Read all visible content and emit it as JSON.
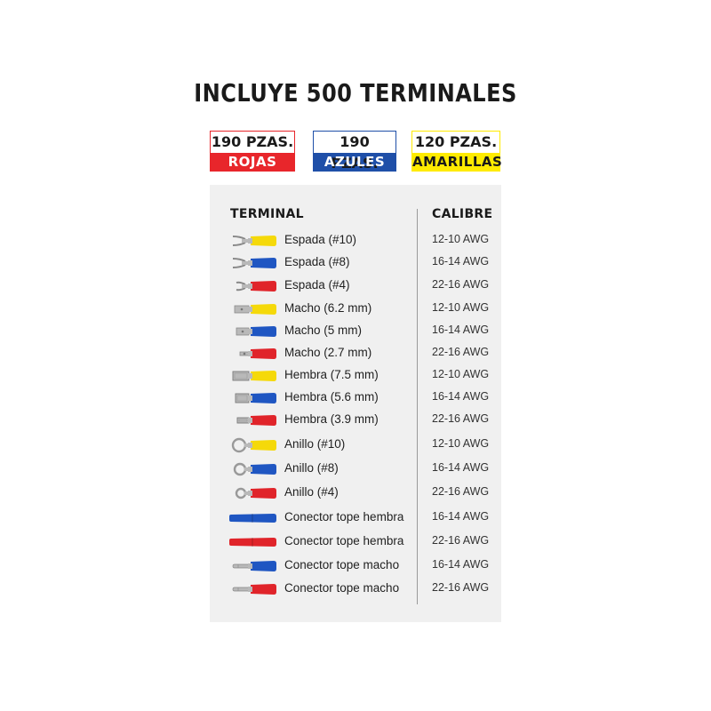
{
  "title": "INCLUYE 500 TERMINALES",
  "badges": [
    {
      "count": "190 PZAS.",
      "label": "ROJAS",
      "bg": "#e8262b",
      "fg": "#ffffff",
      "border": "#e8262b"
    },
    {
      "count": "190 PZAS.",
      "label": "AZULES",
      "bg": "#1f4fa8",
      "fg": "#ffffff",
      "border": "#1f4fa8"
    },
    {
      "count": "120 PZAS.",
      "label": "AMARILLAS",
      "bg": "#ffeb00",
      "fg": "#1a1a1a",
      "border": "#ffeb00"
    }
  ],
  "table": {
    "col_terminal": "TERMINAL",
    "col_calibre": "CALIBRE",
    "rows": [
      {
        "name": "Espada (#10)",
        "gauge": "12-10 AWG",
        "icon": "spade-terminal-icon",
        "color": "yellow"
      },
      {
        "name": "Espada (#8)",
        "gauge": "16-14 AWG",
        "icon": "spade-terminal-icon",
        "color": "blue"
      },
      {
        "name": "Espada (#4)",
        "gauge": "22-16 AWG",
        "icon": "spade-terminal-icon",
        "color": "red"
      },
      {
        "name": "Macho (6.2 mm)",
        "gauge": "12-10 AWG",
        "icon": "male-terminal-icon",
        "color": "yellow"
      },
      {
        "name": "Macho (5 mm)",
        "gauge": "16-14 AWG",
        "icon": "male-terminal-icon",
        "color": "blue"
      },
      {
        "name": "Macho (2.7 mm)",
        "gauge": "22-16 AWG",
        "icon": "male-terminal-icon",
        "color": "red"
      },
      {
        "name": "Hembra (7.5 mm)",
        "gauge": "12-10 AWG",
        "icon": "female-terminal-icon",
        "color": "yellow"
      },
      {
        "name": "Hembra (5.6 mm)",
        "gauge": "16-14 AWG",
        "icon": "female-terminal-icon",
        "color": "blue"
      },
      {
        "name": "Hembra (3.9 mm)",
        "gauge": "22-16 AWG",
        "icon": "female-terminal-icon",
        "color": "red"
      },
      {
        "name": "Anillo (#10)",
        "gauge": "12-10 AWG",
        "icon": "ring-terminal-icon",
        "color": "yellow"
      },
      {
        "name": "Anillo (#8)",
        "gauge": "16-14 AWG",
        "icon": "ring-terminal-icon",
        "color": "blue"
      },
      {
        "name": "Anillo (#4)",
        "gauge": "22-16 AWG",
        "icon": "ring-terminal-icon",
        "color": "red"
      },
      {
        "name": "Conector tope hembra",
        "gauge": "16-14 AWG",
        "icon": "butt-connector-female-icon",
        "color": "blue"
      },
      {
        "name": "Conector tope hembra",
        "gauge": "22-16 AWG",
        "icon": "butt-connector-female-icon",
        "color": "red"
      },
      {
        "name": "Conector tope macho",
        "gauge": "16-14 AWG",
        "icon": "butt-connector-male-icon",
        "color": "blue"
      },
      {
        "name": "Conector tope macho",
        "gauge": "22-16 AWG",
        "icon": "butt-connector-male-icon",
        "color": "red"
      }
    ]
  },
  "colors": {
    "yellow": "#f5d90a",
    "blue": "#1f56c2",
    "red": "#e0242a",
    "metal": "#b9b9b9"
  }
}
